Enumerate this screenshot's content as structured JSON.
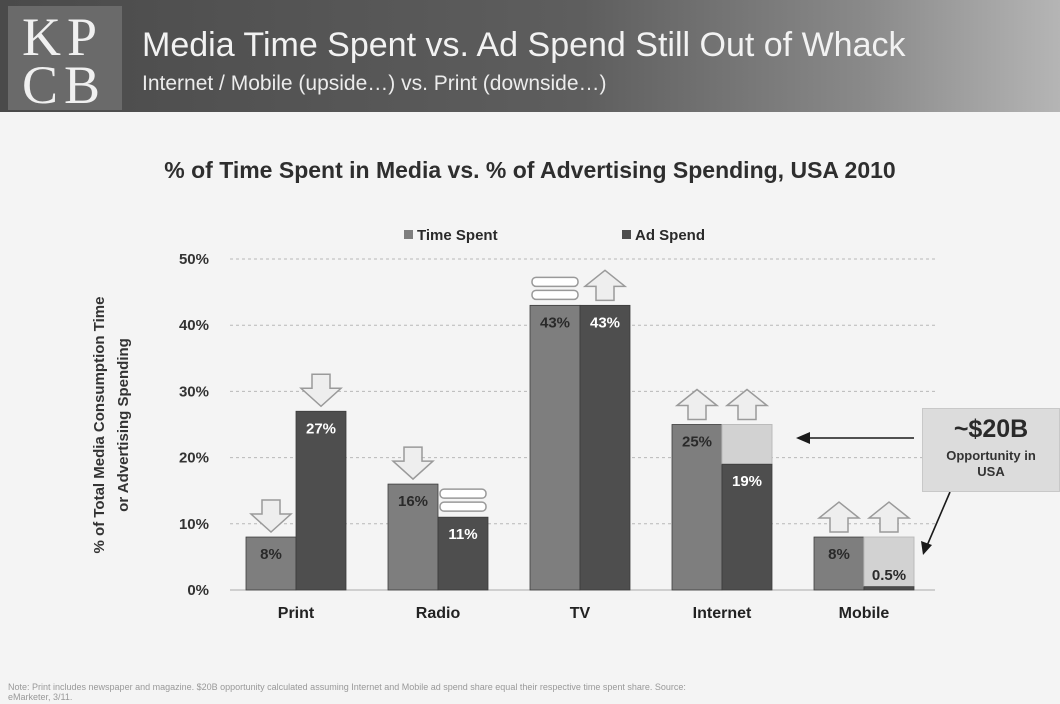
{
  "header": {
    "logo_line1": "KP",
    "logo_line2": "CB",
    "title": "Media Time Spent vs. Ad Spend Still Out of Whack",
    "subtitle": "Internet / Mobile (upside…) vs. Print (downside…)"
  },
  "chart_data": {
    "type": "bar",
    "title": "% of Time Spent in Media vs. % of Advertising Spending, USA 2010",
    "ylabel": "% of Total Media Consumption Time or Advertising Spending",
    "ylabel_lines": [
      "% of Total Media Consumption Time",
      "or Advertising Spending"
    ],
    "xlabel": "",
    "ylim": [
      0,
      50
    ],
    "yticks": [
      0,
      10,
      20,
      30,
      40,
      50
    ],
    "ytick_labels": [
      "0%",
      "10%",
      "20%",
      "30%",
      "40%",
      "50%"
    ],
    "grid": true,
    "legend_position": "top",
    "categories": [
      "Print",
      "Radio",
      "TV",
      "Internet",
      "Mobile"
    ],
    "series": [
      {
        "name": "Time Spent",
        "values": [
          8,
          16,
          43,
          25,
          8
        ],
        "labels": [
          "8%",
          "16%",
          "43%",
          "25%",
          "8%"
        ],
        "color": "#7e7e7e"
      },
      {
        "name": "Ad Spend",
        "values": [
          27,
          11,
          43,
          19,
          0.5
        ],
        "labels": [
          "27%",
          "11%",
          "43%",
          "19%",
          "0.5%"
        ],
        "color": "#4e4e4e"
      }
    ],
    "indicators": [
      [
        "down",
        "down"
      ],
      [
        "down",
        "flat"
      ],
      [
        "flat",
        "up"
      ],
      [
        "up",
        "up"
      ],
      [
        "up",
        "up"
      ]
    ],
    "gap_series_color": "#d2d2d2"
  },
  "callout": {
    "value": "~$20B",
    "label": "Opportunity in USA"
  },
  "note": "Note: Print includes newspaper and magazine. $20B opportunity calculated assuming Internet and Mobile ad spend share equal their respective time spent share. Source: eMarketer, 3/11."
}
